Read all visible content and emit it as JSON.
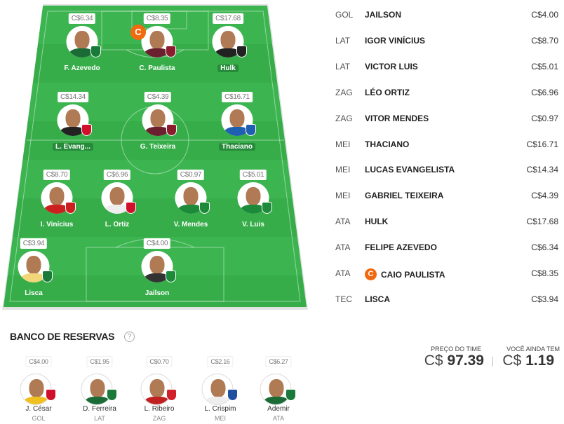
{
  "field": {
    "players": [
      {
        "name": "F. Azevedo",
        "price": "C$6.34",
        "club_color": "#1a7a3a",
        "shirt": "#1a6b35"
      },
      {
        "name": "C. Paulista",
        "price": "C$8.35",
        "club_color": "#8b1c2e",
        "shirt": "#6b2030",
        "captain": true
      },
      {
        "name": "Hulk",
        "price": "C$17.68",
        "club_color": "#222222",
        "shirt": "#222222",
        "highlight": true
      },
      {
        "name": "L. Evang...",
        "price": "C$14.34",
        "club_color": "#d0102a",
        "shirt": "#222222",
        "highlight": true
      },
      {
        "name": "G. Teixeira",
        "price": "C$4.39",
        "club_color": "#8b1c2e",
        "shirt": "#6b2030"
      },
      {
        "name": "Thaciano",
        "price": "C$16.71",
        "club_color": "#1f5fb0",
        "shirt": "#1f5fb0",
        "highlight": true
      },
      {
        "name": "I. Vinícius",
        "price": "C$8.70",
        "club_color": "#cc1f1f",
        "shirt": "#cc1f1f"
      },
      {
        "name": "L. Ortiz",
        "price": "C$6.96",
        "club_color": "#d0102a",
        "shirt": "#eeeeee"
      },
      {
        "name": "V. Mendes",
        "price": "C$0.97",
        "club_color": "#1d8a3a",
        "shirt": "#1d8a3a"
      },
      {
        "name": "V. Luis",
        "price": "C$5.01",
        "club_color": "#1d8a3a",
        "shirt": "#1d8a3a"
      },
      {
        "name": "Lisca",
        "price": "C$3.94",
        "club_color": "#1a7a3a",
        "shirt": "#f1d77a"
      },
      {
        "name": "Jailson",
        "price": "C$4.00",
        "club_color": "#1d8a3a",
        "shirt": "#333333"
      }
    ],
    "captain_badge": "C"
  },
  "lineup": [
    {
      "pos": "GOL",
      "name": "JAILSON",
      "price": "C$4.00"
    },
    {
      "pos": "LAT",
      "name": "IGOR VINÍCIUS",
      "price": "C$8.70"
    },
    {
      "pos": "LAT",
      "name": "VICTOR LUIS",
      "price": "C$5.01"
    },
    {
      "pos": "ZAG",
      "name": "LÉO ORTIZ",
      "price": "C$6.96"
    },
    {
      "pos": "ZAG",
      "name": "VITOR MENDES",
      "price": "C$0.97"
    },
    {
      "pos": "MEI",
      "name": "THACIANO",
      "price": "C$16.71"
    },
    {
      "pos": "MEI",
      "name": "LUCAS EVANGELISTA",
      "price": "C$14.34"
    },
    {
      "pos": "MEI",
      "name": "GABRIEL TEIXEIRA",
      "price": "C$4.39"
    },
    {
      "pos": "ATA",
      "name": "HULK",
      "price": "C$17.68"
    },
    {
      "pos": "ATA",
      "name": "FELIPE AZEVEDO",
      "price": "C$6.34"
    },
    {
      "pos": "ATA",
      "name": "CAIO PAULISTA",
      "price": "C$8.35",
      "captain": true
    },
    {
      "pos": "TEC",
      "name": "LISCA",
      "price": "C$3.94"
    }
  ],
  "bench": {
    "title": "BANCO DE RESERVAS",
    "help": "?",
    "players": [
      {
        "name": "J. César",
        "pos": "GOL",
        "price": "C$4.00",
        "club_color": "#d0102a",
        "shirt": "#f0c020"
      },
      {
        "name": "D. Ferreira",
        "pos": "LAT",
        "price": "C$1.95",
        "club_color": "#1a7a3a",
        "shirt": "#1a6b35"
      },
      {
        "name": "L. Ribeiro",
        "pos": "ZAG",
        "price": "C$0.70",
        "club_color": "#d0202a",
        "shirt": "#c02020"
      },
      {
        "name": "L. Crispim",
        "pos": "MEI",
        "price": "C$2.16",
        "club_color": "#1f4fa0",
        "shirt": "#eeeeee"
      },
      {
        "name": "Ademir",
        "pos": "ATA",
        "price": "C$6.27",
        "club_color": "#1a7a3a",
        "shirt": "#1a6b35"
      }
    ]
  },
  "summary": {
    "team_price_label": "PREÇO DO TIME",
    "currency": "C$",
    "team_price": "97.39",
    "remaining_label": "VOCÊ AINDA TEM",
    "remaining": "1.19"
  },
  "colors": {
    "field": "#3cb450",
    "captain": "#f26a10"
  }
}
